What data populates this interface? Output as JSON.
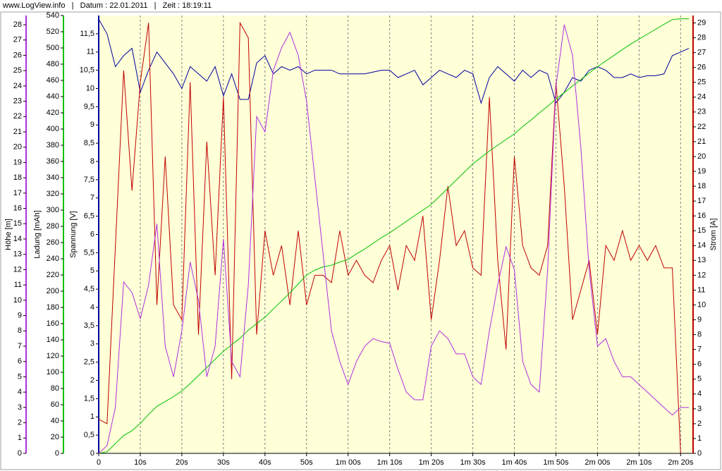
{
  "chart_data": {
    "type": "line",
    "title": "www.LogView.info   |   Datum : 22.01.2011   |   Zeit : 18:19:11",
    "ylabel": "Spannung [V]",
    "y2label": "Strom [A]",
    "y3label": "Ladung [mAh]",
    "y4label": "Höhe [m]",
    "xgrid": true,
    "background": "#ffffd8",
    "x": [
      0,
      2,
      4,
      6,
      8,
      10,
      12,
      14,
      16,
      18,
      20,
      22,
      24,
      26,
      28,
      30,
      32,
      34,
      36,
      38,
      40,
      42,
      44,
      46,
      48,
      50,
      52,
      54,
      56,
      58,
      60,
      62,
      64,
      66,
      68,
      70,
      72,
      74,
      76,
      78,
      80,
      82,
      84,
      86,
      88,
      90,
      92,
      94,
      96,
      98,
      100,
      102,
      104,
      106,
      108,
      110,
      112,
      114,
      116,
      118,
      120,
      122,
      124,
      126,
      128,
      130,
      132,
      134,
      136,
      138,
      140,
      142
    ],
    "xlim": [
      0,
      143
    ],
    "xticks": [
      0,
      {
        "value": 10,
        "label": "10s"
      },
      {
        "value": 20,
        "label": "20s"
      },
      {
        "value": 30,
        "label": "30s"
      },
      {
        "value": 40,
        "label": "40s"
      },
      {
        "value": 50,
        "label": "50s"
      },
      {
        "value": 60,
        "label": "1m 00s"
      },
      {
        "value": 70,
        "label": "1m 10s"
      },
      {
        "value": 80,
        "label": "1m 20s"
      },
      {
        "value": 90,
        "label": "1m 30s"
      },
      {
        "value": 100,
        "label": "1m 40s"
      },
      {
        "value": 110,
        "label": "1m 50s"
      },
      {
        "value": 120,
        "label": "2m 00s"
      },
      {
        "value": 130,
        "label": "2m 10s"
      },
      {
        "value": 140,
        "label": "2m 20s"
      }
    ],
    "ylim": [
      0,
      12
    ],
    "yticks": [
      0,
      {
        "value": 0.5,
        "label": "0,5"
      },
      1,
      {
        "value": 1.5,
        "label": "1,5"
      },
      2,
      {
        "value": 2.5,
        "label": "2,5"
      },
      3,
      {
        "value": 3.5,
        "label": "3,5"
      },
      4,
      {
        "value": 4.5,
        "label": "4,5"
      },
      5,
      {
        "value": 5.5,
        "label": "5,5"
      },
      6,
      {
        "value": 6.5,
        "label": "6,5"
      },
      7,
      {
        "value": 7.5,
        "label": "7,5"
      },
      8,
      {
        "value": 8.5,
        "label": "8,5"
      },
      9,
      {
        "value": 9.5,
        "label": "9,5"
      },
      10,
      {
        "value": 10.5,
        "label": "10,5"
      },
      11,
      {
        "value": 11.5,
        "label": "11,5"
      }
    ],
    "y2lim": [
      0,
      29.5
    ],
    "y2ticks": [
      0,
      1,
      2,
      3,
      4,
      5,
      6,
      7,
      8,
      9,
      10,
      11,
      12,
      13,
      14,
      15,
      16,
      17,
      18,
      19,
      20,
      21,
      22,
      23,
      24,
      25,
      26,
      27,
      28,
      29
    ],
    "y3lim": [
      0,
      540
    ],
    "y3ticks": [
      0,
      20,
      40,
      60,
      80,
      100,
      120,
      140,
      160,
      180,
      200,
      220,
      240,
      260,
      280,
      300,
      320,
      340,
      360,
      380,
      400,
      420,
      440,
      460,
      480,
      500,
      520,
      540
    ],
    "y4lim": [
      0,
      28.6
    ],
    "y4ticks": [
      0,
      1,
      2,
      3,
      4,
      5,
      6,
      7,
      8,
      9,
      10,
      11,
      12,
      13,
      14,
      15,
      16,
      17,
      18,
      19,
      20,
      21,
      22,
      23,
      24,
      25,
      26,
      27,
      28
    ],
    "series": [
      {
        "name": "Spannung",
        "color": "#0000a0",
        "axis": "y",
        "values": [
          11.9,
          11.5,
          10.6,
          10.9,
          11.1,
          9.9,
          10.5,
          11.0,
          10.7,
          10.4,
          10.0,
          10.6,
          10.4,
          10.2,
          10.6,
          9.8,
          10.4,
          9.7,
          9.7,
          10.7,
          10.9,
          10.4,
          10.6,
          10.5,
          10.6,
          10.4,
          10.5,
          10.5,
          10.5,
          10.4,
          10.4,
          10.4,
          10.4,
          10.45,
          10.5,
          10.5,
          10.3,
          10.4,
          10.5,
          10.1,
          10.3,
          10.5,
          10.4,
          10.3,
          10.5,
          10.4,
          9.6,
          10.3,
          10.6,
          10.4,
          10.2,
          10.5,
          10.3,
          10.5,
          10.4,
          9.6,
          9.9,
          10.3,
          10.2,
          10.5,
          10.6,
          10.5,
          10.3,
          10.3,
          10.4,
          10.3,
          10.35,
          10.35,
          10.4,
          10.9,
          11.0,
          11.1
        ]
      },
      {
        "name": "Strom",
        "color": "#c00000",
        "axis": "y2",
        "values": [
          2.3,
          2.0,
          13.9,
          25.8,
          17.7,
          25,
          29,
          10,
          20,
          10,
          9,
          25,
          8,
          21,
          12,
          24,
          5,
          29,
          28,
          8,
          15,
          12,
          14,
          10,
          15,
          10,
          12,
          12,
          11.5,
          15,
          12,
          13,
          12,
          11.5,
          13,
          14,
          11,
          14,
          13,
          16,
          9,
          13,
          18,
          14,
          15,
          12.5,
          12,
          24,
          13,
          7,
          20,
          14,
          12.5,
          12,
          14,
          25,
          18,
          9,
          11,
          13,
          8,
          14,
          13,
          15,
          13,
          14,
          13,
          14,
          12.5,
          12.5,
          0,
          null
        ]
      },
      {
        "name": "Ladung",
        "color": "#00c000",
        "axis": "y3",
        "values": [
          0,
          2,
          12,
          22,
          28,
          37,
          48,
          58,
          64,
          70,
          77,
          86,
          96,
          106,
          116,
          126,
          134,
          142,
          152,
          160,
          168,
          178,
          188,
          198,
          209,
          220,
          226,
          230,
          232,
          236,
          239,
          246,
          252,
          259,
          266,
          272,
          279,
          286,
          293,
          300,
          307,
          317,
          327,
          337,
          347,
          357,
          365,
          373,
          380,
          387,
          394,
          403,
          411,
          420,
          428,
          437,
          445,
          453,
          461,
          469,
          477,
          484,
          491,
          498,
          505,
          511,
          517,
          523,
          529,
          535,
          536,
          536
        ]
      },
      {
        "name": "Höhe",
        "color": "#b030e0",
        "axis": "y4",
        "values": [
          0,
          0.5,
          3,
          11.2,
          10.5,
          8.8,
          11,
          15,
          7,
          5,
          8,
          12.5,
          10,
          5,
          7,
          14,
          6,
          5,
          11,
          22,
          21,
          25,
          26.5,
          27.5,
          26,
          23,
          18,
          13,
          8,
          6,
          4.5,
          6,
          7,
          7.5,
          7.3,
          7.2,
          5.5,
          4,
          3.5,
          3.5,
          7,
          8,
          7.5,
          6.5,
          6.5,
          5,
          4.5,
          8,
          11,
          13.5,
          12,
          6,
          4.5,
          4,
          12,
          24,
          28,
          26,
          20,
          12,
          7,
          7.5,
          6,
          5,
          5,
          4.5,
          4,
          3.5,
          3,
          2.5,
          3,
          3
        ]
      }
    ]
  }
}
